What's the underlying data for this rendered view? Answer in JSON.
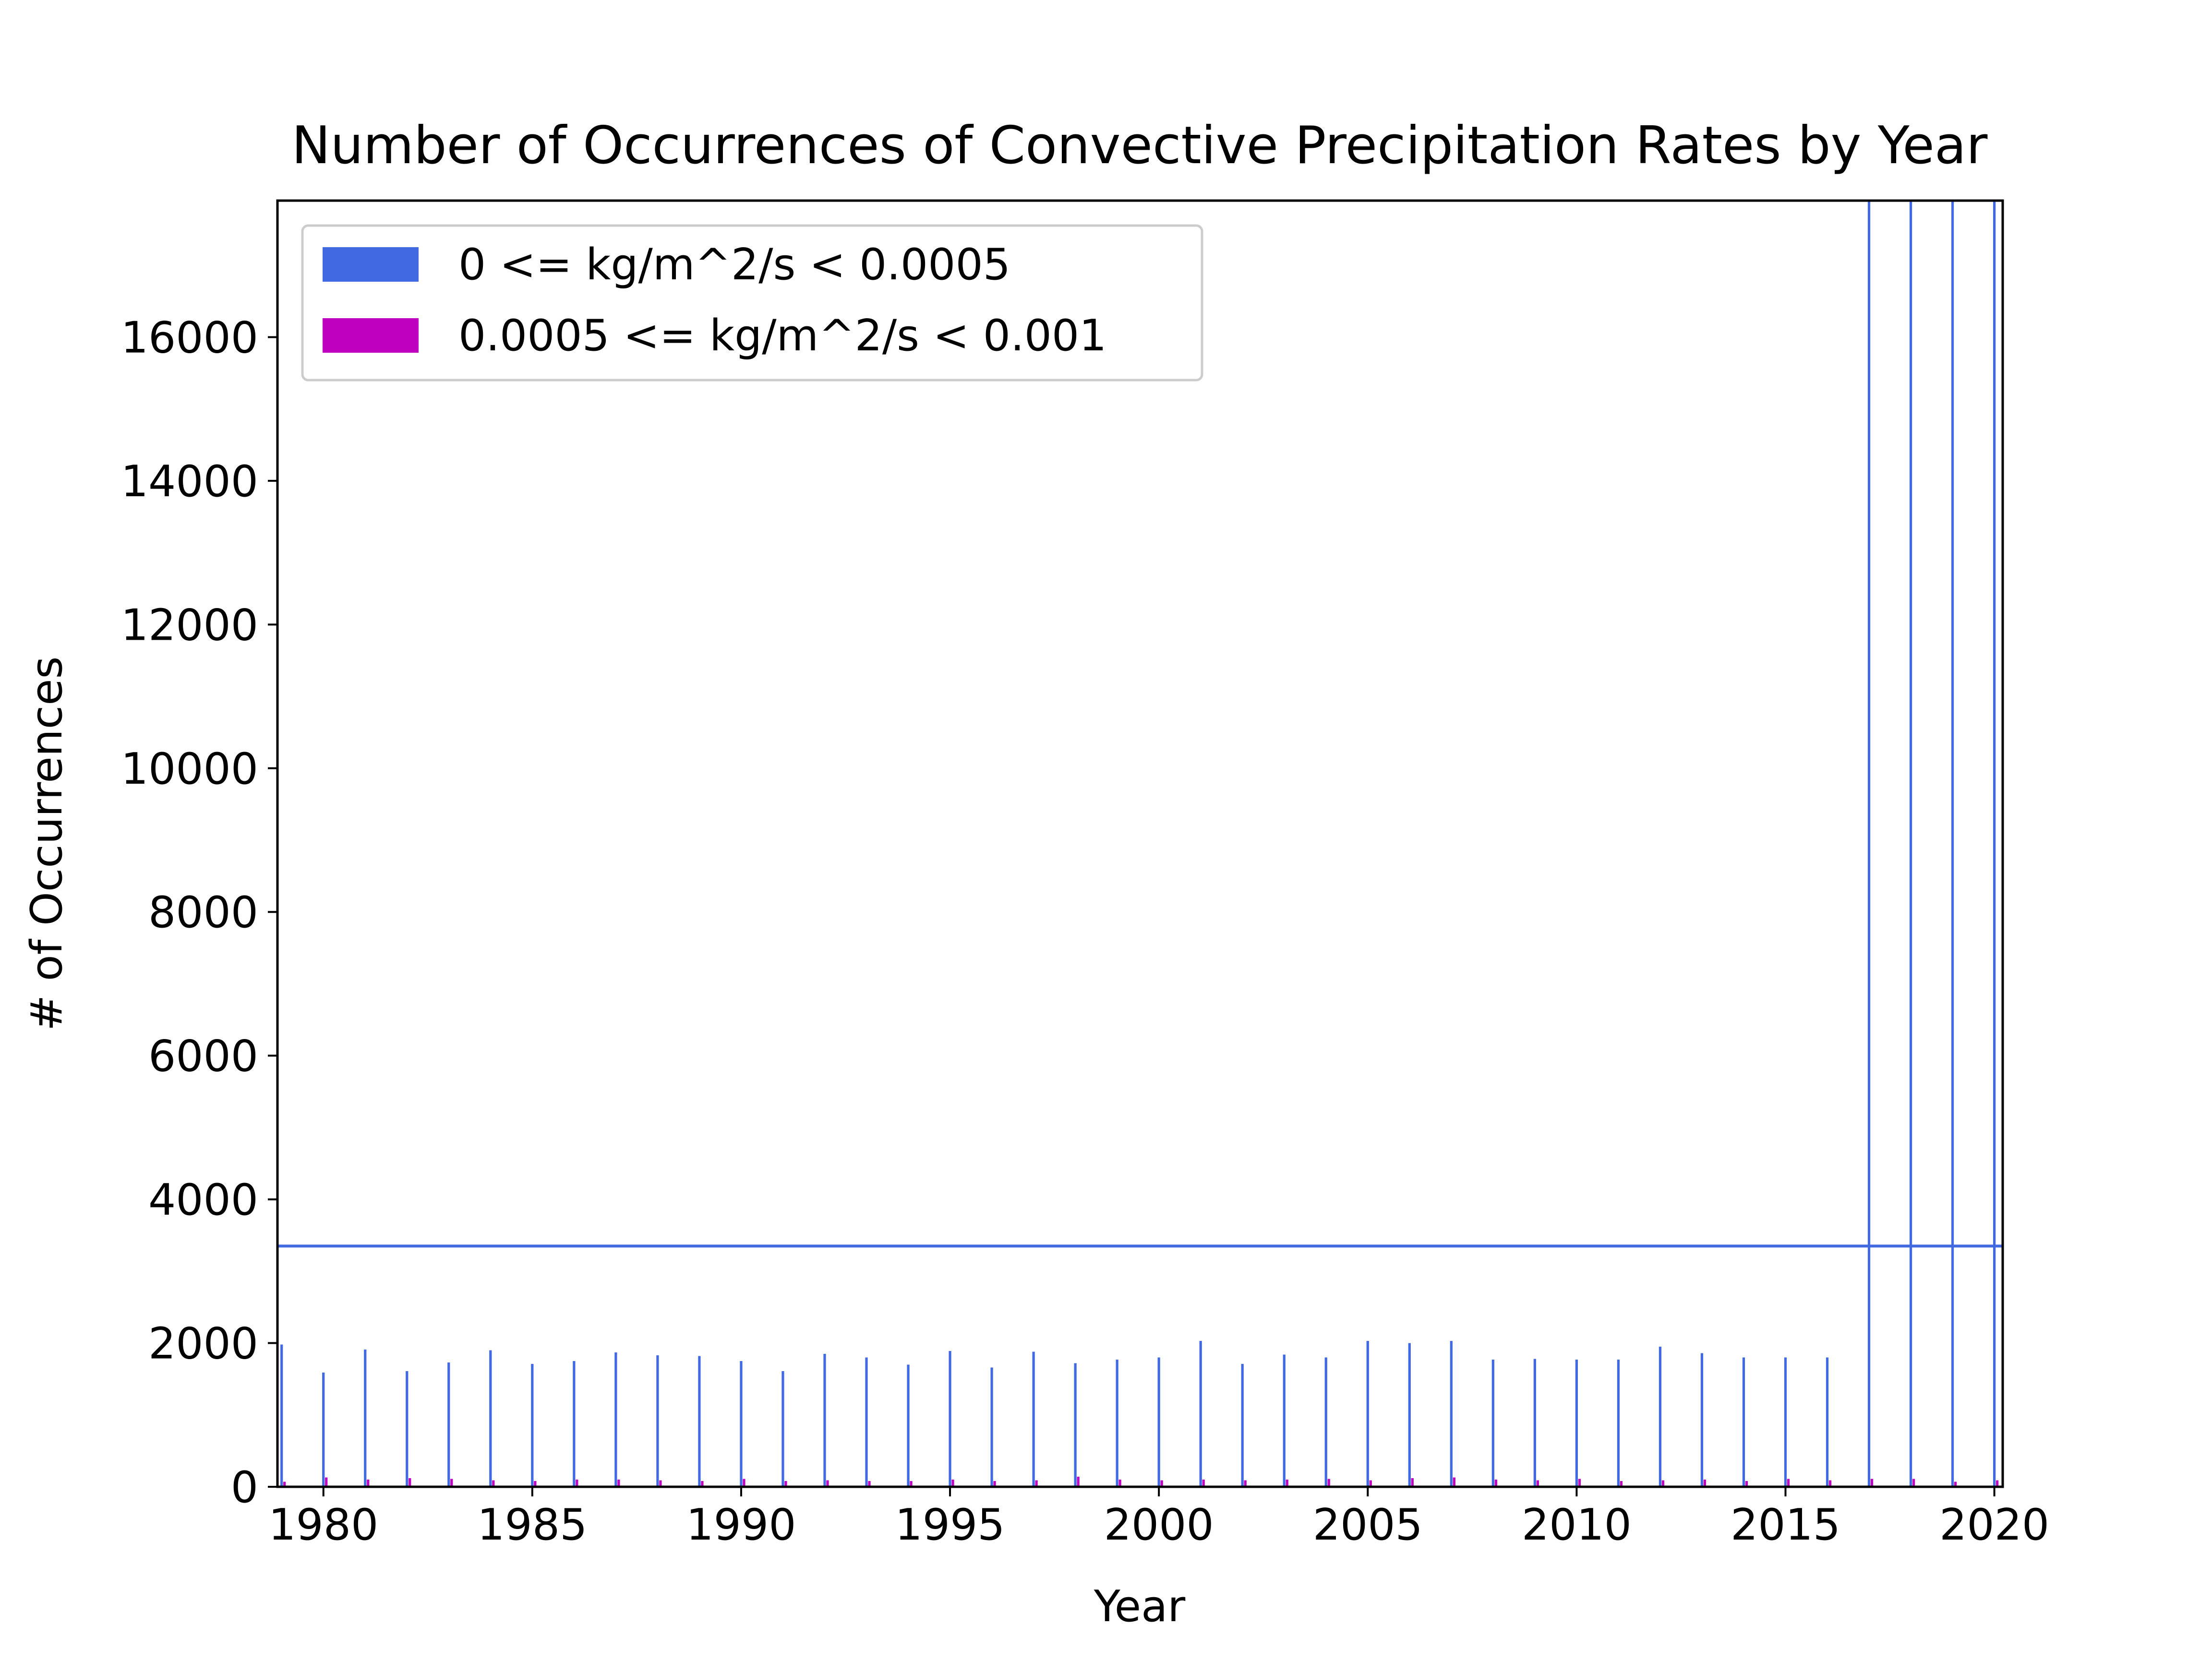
{
  "chart_data": {
    "type": "bar",
    "title": "Number of Occurrences of Convective Precipitation Rates by Year",
    "xlabel": "Year",
    "ylabel": "# of Occurrences",
    "xlim": [
      1978.9,
      2020.2
    ],
    "ylim": [
      0,
      17900
    ],
    "xticks": [
      1980,
      1985,
      1990,
      1995,
      2000,
      2005,
      2010,
      2015,
      2020
    ],
    "yticks": [
      0,
      2000,
      4000,
      6000,
      8000,
      10000,
      12000,
      14000,
      16000
    ],
    "grid": false,
    "legend_position": "top-left",
    "x": [
      1979,
      1980,
      1981,
      1982,
      1983,
      1984,
      1985,
      1986,
      1987,
      1988,
      1989,
      1990,
      1991,
      1992,
      1993,
      1994,
      1995,
      1996,
      1997,
      1998,
      1999,
      2000,
      2001,
      2002,
      2003,
      2004,
      2005,
      2006,
      2007,
      2008,
      2009,
      2010,
      2011,
      2012,
      2013,
      2014,
      2015,
      2016,
      2017,
      2018,
      2019,
      2020
    ],
    "series": [
      {
        "name": "0 <= kg/m^2/s < 0.0005",
        "color": "#4169e1",
        "values": [
          1980,
          1590,
          1910,
          1610,
          1730,
          1900,
          1710,
          1750,
          1870,
          1830,
          1820,
          1750,
          1610,
          1850,
          1800,
          1700,
          1890,
          1660,
          1880,
          1720,
          1770,
          1800,
          2030,
          1710,
          1840,
          1800,
          2030,
          2000,
          2030,
          1770,
          1780,
          1770,
          1770,
          1950,
          1860,
          1800,
          1800,
          1800,
          17900,
          17900,
          17900,
          17900
        ]
      },
      {
        "name": "0.0005 <= kg/m^2/s < 0.001",
        "color": "#bf00bf",
        "values": [
          70,
          130,
          100,
          120,
          110,
          90,
          80,
          100,
          100,
          90,
          80,
          110,
          80,
          90,
          80,
          80,
          100,
          80,
          90,
          140,
          100,
          90,
          100,
          90,
          100,
          110,
          90,
          120,
          130,
          100,
          90,
          110,
          80,
          90,
          100,
          80,
          110,
          90,
          110,
          110,
          70,
          90
        ]
      }
    ],
    "reference_line": {
      "orientation": "horizontal",
      "value": 3350,
      "color": "#4169e1"
    }
  }
}
